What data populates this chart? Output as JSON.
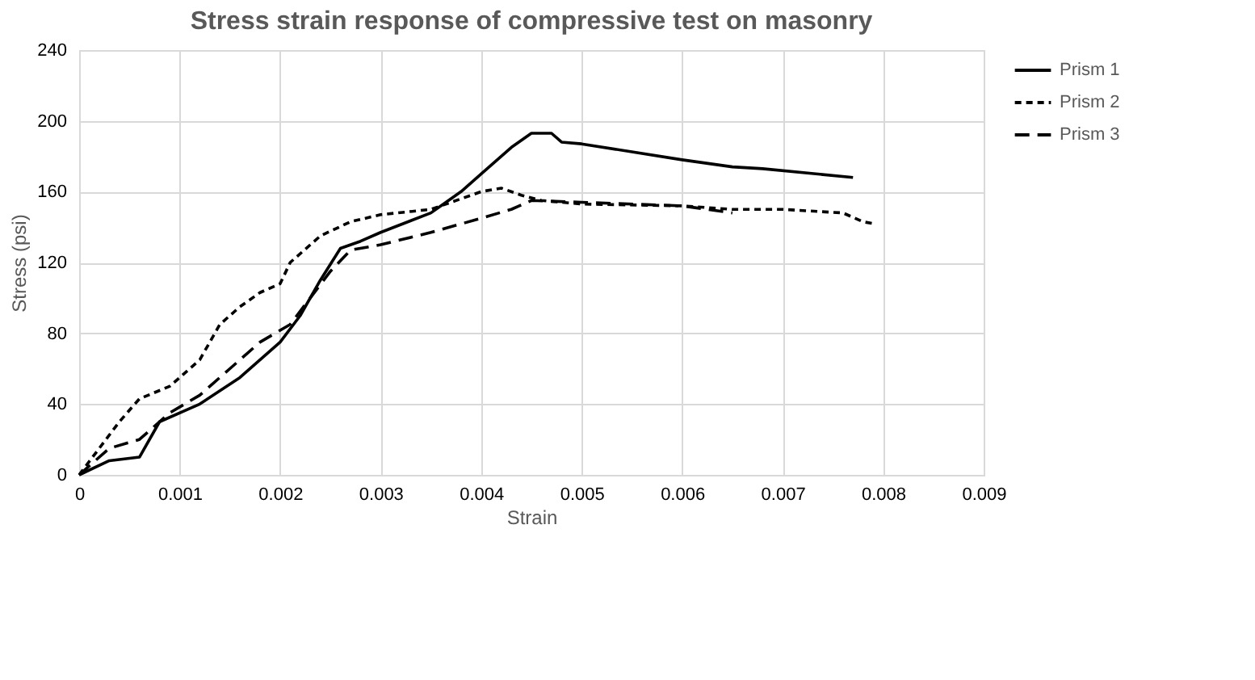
{
  "chart_data": {
    "type": "line",
    "title": "Stress strain response of compressive test on masonry",
    "xlabel": "Strain",
    "ylabel": "Stress (psi)",
    "xlim": [
      0,
      0.009
    ],
    "xticks": [
      0,
      0.001,
      0.002,
      0.003,
      0.004,
      0.005,
      0.006,
      0.007,
      0.008,
      0.009
    ],
    "ylim": [
      0,
      240
    ],
    "yticks": [
      0,
      40,
      80,
      120,
      160,
      200,
      240
    ],
    "grid": true,
    "legend": "right",
    "marker": "none",
    "series": [
      {
        "name": "Prism 1",
        "color": "#000000",
        "line_style": "solid",
        "x": [
          0,
          0.0003,
          0.0006,
          0.0008,
          0.0012,
          0.0016,
          0.002,
          0.0022,
          0.0024,
          0.0026,
          0.0028,
          0.003,
          0.0035,
          0.0038,
          0.004,
          0.0043,
          0.0045,
          0.0047,
          0.0048,
          0.005,
          0.006,
          0.0065,
          0.0068,
          0.0077
        ],
        "values": [
          0,
          8,
          10,
          30,
          40,
          55,
          75,
          90,
          110,
          128,
          132,
          137,
          148,
          160,
          170,
          185,
          193,
          193,
          188,
          187,
          178,
          174,
          173,
          168
        ]
      },
      {
        "name": "Prism 2",
        "color": "#000000",
        "line_style": "dotted",
        "x": [
          0,
          0.0002,
          0.0004,
          0.0006,
          0.0009,
          0.0012,
          0.0014,
          0.0016,
          0.0018,
          0.002,
          0.0021,
          0.0024,
          0.0027,
          0.003,
          0.0035,
          0.004,
          0.0042,
          0.0044,
          0.0046,
          0.005,
          0.006,
          0.0065,
          0.007,
          0.0076,
          0.0078,
          0.0079
        ],
        "values": [
          0,
          15,
          30,
          43,
          50,
          65,
          85,
          95,
          103,
          108,
          120,
          135,
          143,
          147,
          150,
          160,
          162,
          158,
          155,
          153,
          152,
          150,
          150,
          148,
          143,
          142
        ]
      },
      {
        "name": "Prism 3",
        "color": "#000000",
        "line_style": "dashed",
        "x": [
          0,
          0.0003,
          0.0006,
          0.0009,
          0.0012,
          0.0015,
          0.0018,
          0.0021,
          0.0023,
          0.0025,
          0.0027,
          0.003,
          0.0035,
          0.004,
          0.0043,
          0.0045,
          0.005,
          0.006,
          0.0065
        ],
        "values": [
          0,
          15,
          20,
          35,
          45,
          60,
          75,
          85,
          100,
          115,
          127,
          130,
          137,
          145,
          150,
          155,
          154,
          152,
          148
        ]
      }
    ]
  }
}
